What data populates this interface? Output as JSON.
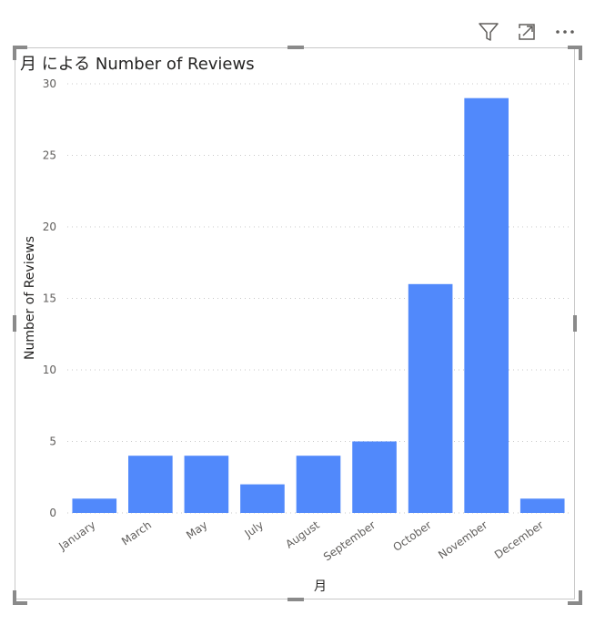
{
  "toolbar": {
    "filter_icon": "filter-icon",
    "focus_icon": "focus-mode-icon",
    "more_icon": "more-options-icon"
  },
  "colors": {
    "bar": "#5189fb",
    "grid": "#c8c8c8"
  },
  "chart_data": {
    "type": "bar",
    "title": "月 による Number of Reviews",
    "xlabel": "月",
    "ylabel": "Number of Reviews",
    "categories": [
      "January",
      "March",
      "May",
      "July",
      "August",
      "September",
      "October",
      "November",
      "December"
    ],
    "values": [
      1,
      4,
      4,
      2,
      4,
      5,
      16,
      29,
      1
    ],
    "ylim": [
      0,
      30
    ],
    "yticks": [
      0,
      5,
      10,
      15,
      20,
      25,
      30
    ],
    "grid": true,
    "legend": "none"
  }
}
